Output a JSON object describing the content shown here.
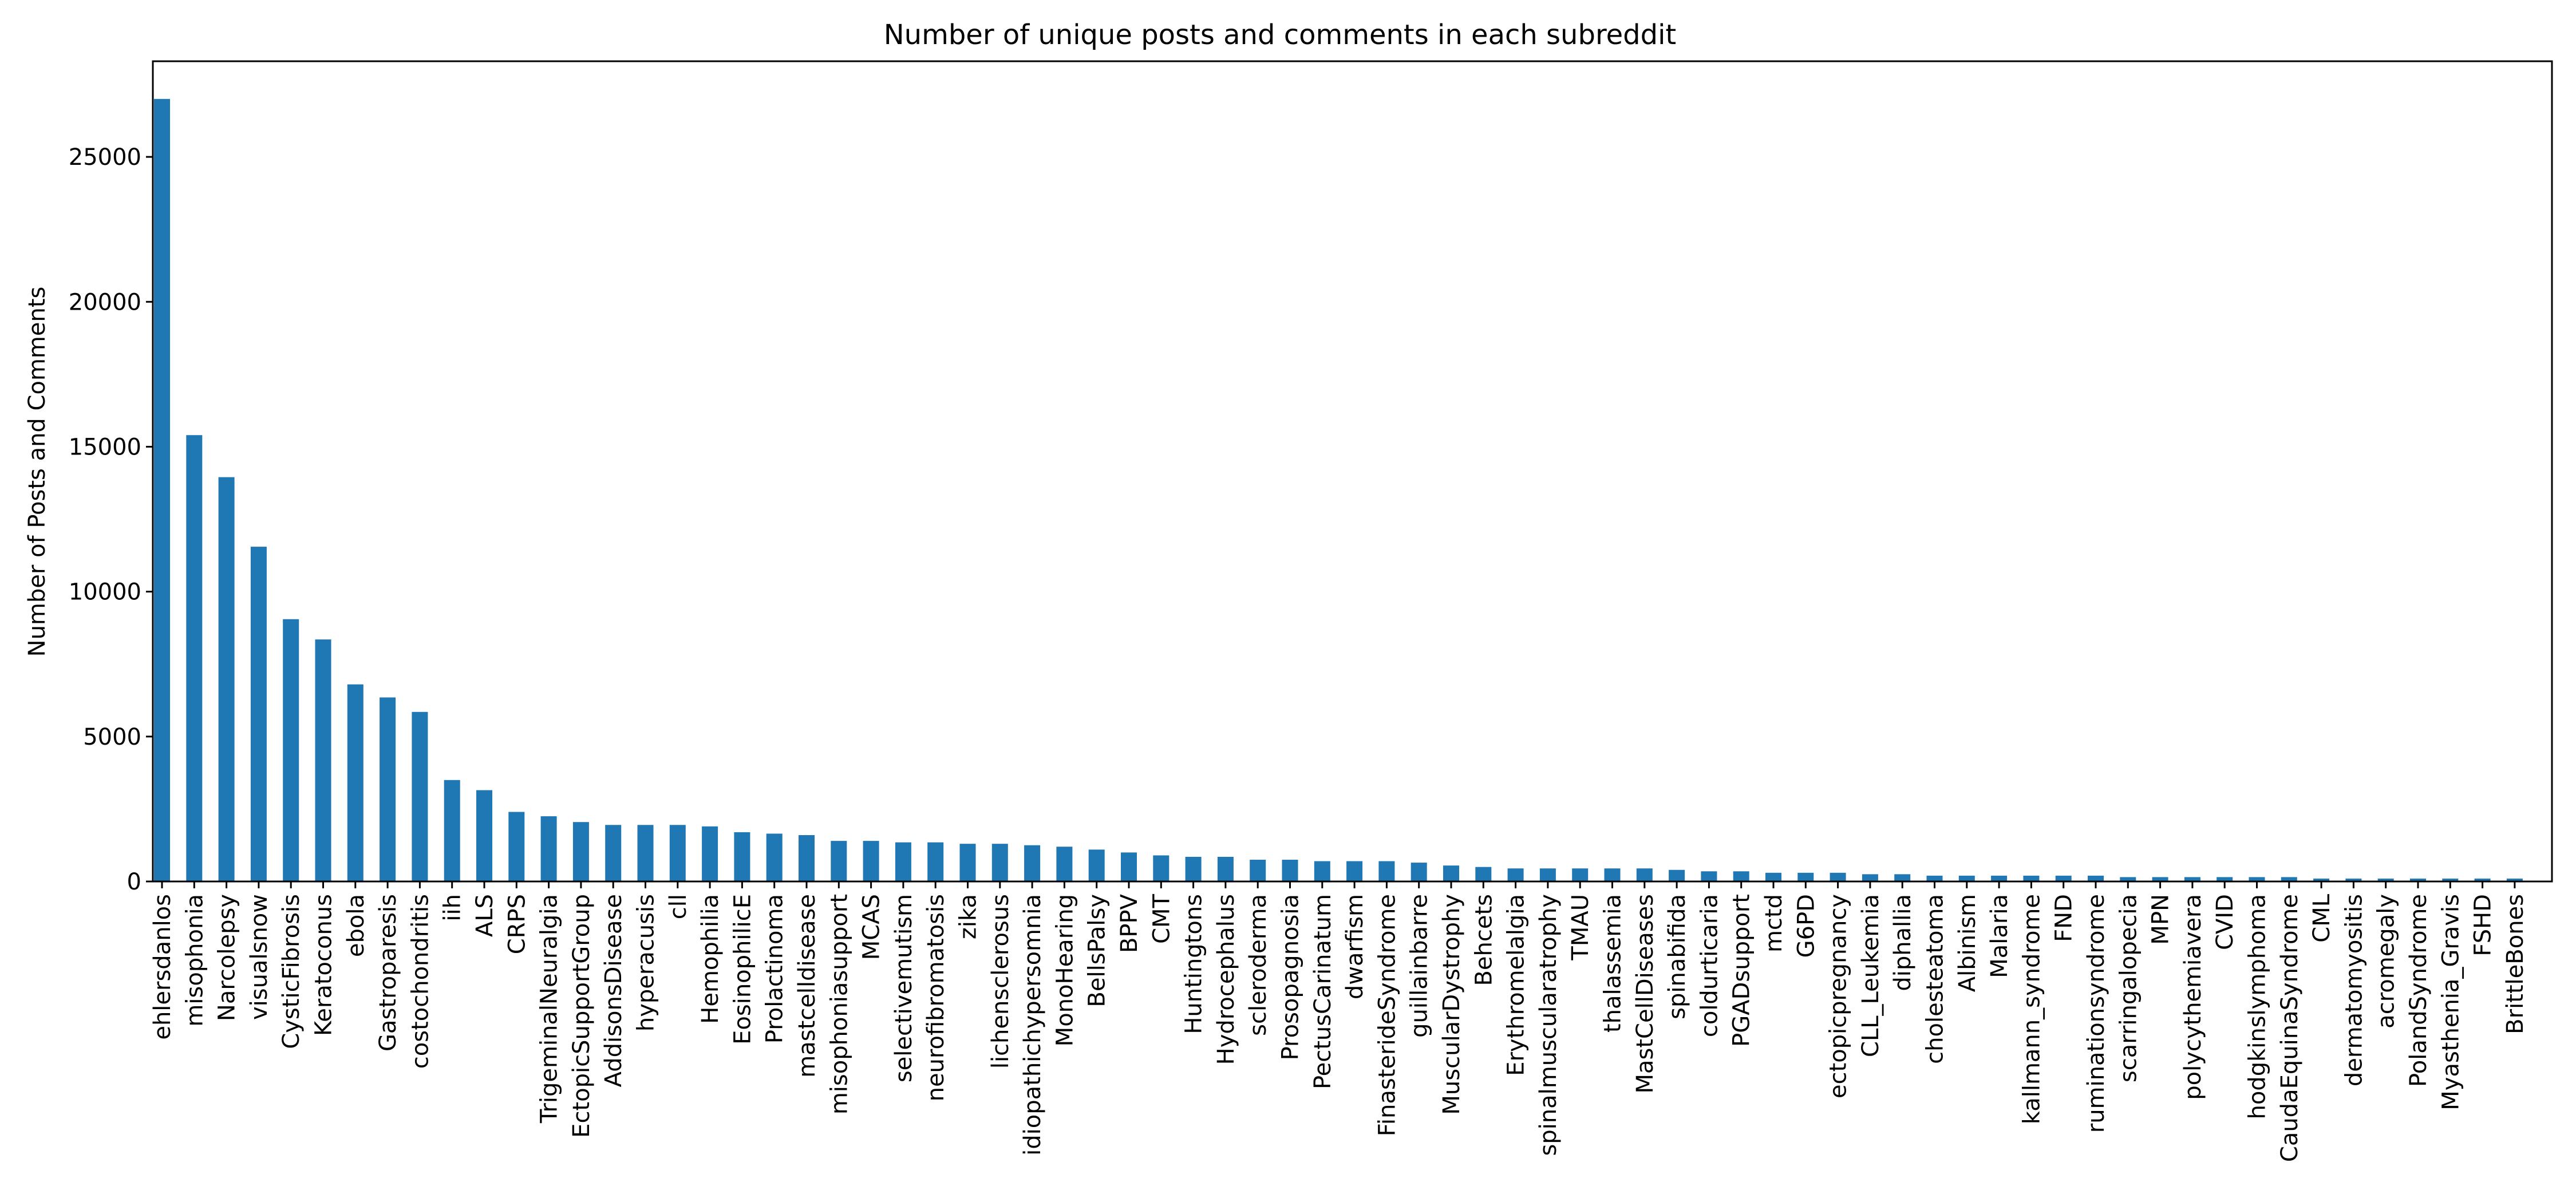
{
  "chart_data": {
    "type": "bar",
    "title": "Number of unique posts and comments in each subreddit",
    "xlabel": "",
    "ylabel": "Number of Posts and Comments",
    "ylim": [
      0,
      28300
    ],
    "yticks": [
      0,
      5000,
      10000,
      15000,
      20000,
      25000
    ],
    "ytick_labels": [
      "0",
      "5000",
      "10000",
      "15000",
      "20000",
      "25000"
    ],
    "grid": false,
    "bar_color": "#1f77b4",
    "categories": [
      "ehlersdanlos",
      "misophonia",
      "Narcolepsy",
      "visualsnow",
      "CysticFibrosis",
      "Keratoconus",
      "ebola",
      "Gastroparesis",
      "costochondritis",
      "iih",
      "ALS",
      "CRPS",
      "TrigeminalNeuralgia",
      "EctopicSupportGroup",
      "AddisonsDisease",
      "hyperacusis",
      "cll",
      "Hemophilia",
      "EosinophilicE",
      "Prolactinoma",
      "mastcelldisease",
      "misophoniasupport",
      "MCAS",
      "selectivemutism",
      "neurofibromatosis",
      "zika",
      "lichensclerosus",
      "idiopathichypersomnia",
      "MonoHearing",
      "BellsPalsy",
      "BPPV",
      "CMT",
      "Huntingtons",
      "Hydrocephalus",
      "scleroderma",
      "Prosopagnosia",
      "PectusCarinatum",
      "dwarfism",
      "FinasterideSyndrome",
      "guillainbarre",
      "MuscularDystrophy",
      "Behcets",
      "Erythromelalgia",
      "spinalmuscularatrophy",
      "TMAU",
      "thalassemia",
      "MastCellDiseases",
      "spinabifida",
      "coldurticaria",
      "PGADsupport",
      "mctd",
      "G6PD",
      "ectopicpregnancy",
      "CLL_Leukemia",
      "diphallia",
      "cholesteatoma",
      "Albinism",
      "Malaria",
      "kallmann_syndrome",
      "FND",
      "ruminationsyndrome",
      "scarringalopecia",
      "MPN",
      "polycythemiavera",
      "CVID",
      "hodgkinslymphoma",
      "CaudaEquinaSyndrome",
      "CML",
      "dermatomyositis",
      "acromegaly",
      "PolandSyndrome",
      "Myasthenia_Gravis",
      "FSHD",
      "BrittleBones"
    ],
    "values": [
      27000,
      15400,
      13950,
      11550,
      9050,
      8350,
      6800,
      6350,
      5850,
      3500,
      3150,
      2400,
      2250,
      2050,
      1950,
      1950,
      1950,
      1900,
      1700,
      1650,
      1600,
      1400,
      1400,
      1350,
      1350,
      1300,
      1300,
      1250,
      1200,
      1100,
      1000,
      900,
      850,
      850,
      750,
      750,
      700,
      700,
      700,
      650,
      550,
      500,
      450,
      450,
      450,
      450,
      450,
      400,
      350,
      350,
      300,
      300,
      300,
      250,
      250,
      200,
      200,
      200,
      200,
      200,
      200,
      150,
      150,
      150,
      150,
      150,
      150,
      100,
      100,
      100,
      100,
      100,
      100,
      100
    ]
  }
}
